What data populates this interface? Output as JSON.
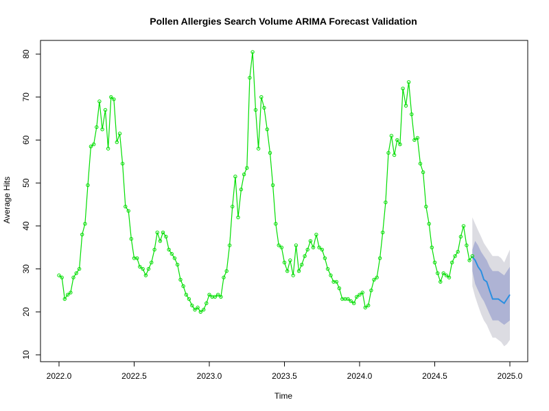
{
  "chart_data": {
    "type": "line",
    "title": "Pollen Allergies Search Volume ARIMA Forecast Validation",
    "xlabel": "Time",
    "ylabel": "Average Hits",
    "xlim": [
      2022.0,
      2025.0
    ],
    "ylim": [
      10,
      82
    ],
    "xticks": [
      2022.0,
      2022.5,
      2023.0,
      2023.5,
      2024.0,
      2024.5,
      2025.0
    ],
    "xtick_labels": [
      "2022.0",
      "2022.5",
      "2023.0",
      "2023.5",
      "2024.0",
      "2024.5",
      "2025.0"
    ],
    "yticks": [
      10,
      20,
      30,
      40,
      50,
      60,
      70,
      80
    ],
    "ytick_labels": [
      "10",
      "20",
      "30",
      "40",
      "50",
      "60",
      "70",
      "80"
    ],
    "grid": false,
    "colors": {
      "observed": "#00dd00",
      "forecast": "#2a8fe0",
      "band80": "#aeb3d4",
      "band95": "#dcdce2"
    },
    "series": [
      {
        "role": "observed",
        "x": [
          2022.0,
          2022.019,
          2022.038,
          2022.058,
          2022.077,
          2022.096,
          2022.115,
          2022.135,
          2022.154,
          2022.173,
          2022.192,
          2022.212,
          2022.231,
          2022.25,
          2022.269,
          2022.288,
          2022.308,
          2022.327,
          2022.346,
          2022.365,
          2022.385,
          2022.404,
          2022.423,
          2022.442,
          2022.462,
          2022.481,
          2022.5,
          2022.519,
          2022.538,
          2022.558,
          2022.577,
          2022.596,
          2022.615,
          2022.635,
          2022.654,
          2022.673,
          2022.692,
          2022.712,
          2022.731,
          2022.75,
          2022.769,
          2022.788,
          2022.808,
          2022.827,
          2022.846,
          2022.865,
          2022.885,
          2022.904,
          2022.923,
          2022.942,
          2022.962,
          2022.981,
          2023.0,
          2023.019,
          2023.038,
          2023.058,
          2023.077,
          2023.096,
          2023.115,
          2023.135,
          2023.154,
          2023.173,
          2023.192,
          2023.212,
          2023.231,
          2023.25,
          2023.269,
          2023.288,
          2023.308,
          2023.327,
          2023.346,
          2023.365,
          2023.385,
          2023.404,
          2023.423,
          2023.442,
          2023.462,
          2023.481,
          2023.5,
          2023.519,
          2023.538,
          2023.558,
          2023.577,
          2023.596,
          2023.615,
          2023.635,
          2023.654,
          2023.673,
          2023.692,
          2023.712,
          2023.731,
          2023.75,
          2023.769,
          2023.788,
          2023.808,
          2023.827,
          2023.846,
          2023.865,
          2023.885,
          2023.904,
          2023.923,
          2023.942,
          2023.962,
          2023.981,
          2024.0,
          2024.019,
          2024.038,
          2024.058,
          2024.077,
          2024.096,
          2024.115,
          2024.135,
          2024.154,
          2024.173,
          2024.192,
          2024.212,
          2024.231,
          2024.25,
          2024.269,
          2024.288,
          2024.308,
          2024.327,
          2024.346,
          2024.365,
          2024.385,
          2024.404,
          2024.423,
          2024.442,
          2024.462,
          2024.481,
          2024.5,
          2024.519,
          2024.538,
          2024.558,
          2024.577,
          2024.596,
          2024.615,
          2024.635,
          2024.654,
          2024.673,
          2024.692,
          2024.712,
          2024.731,
          2024.75
        ],
        "values": [
          28.5,
          28,
          23,
          24,
          24.5,
          28,
          29,
          30,
          38,
          40.5,
          49.5,
          58.5,
          59,
          63,
          69,
          62.5,
          67,
          58,
          70,
          69.5,
          59.5,
          61.5,
          54.5,
          44.5,
          43.5,
          37,
          32.5,
          32.5,
          30.5,
          30,
          28.5,
          30,
          31.5,
          34.5,
          38.5,
          36.5,
          38.5,
          37.5,
          34.5,
          33.5,
          32.5,
          31,
          27.5,
          26,
          24,
          23,
          21.5,
          20.5,
          21,
          20,
          20.5,
          22,
          24,
          23.5,
          23.5,
          24,
          23.5,
          28,
          29.5,
          35.5,
          44.5,
          51.5,
          42,
          48.5,
          52,
          53.5,
          74.5,
          80.5,
          67,
          58,
          70,
          67.5,
          62.5,
          57,
          49.5,
          40.5,
          35.5,
          35,
          31.5,
          29.5,
          32,
          28.5,
          35.5,
          29.5,
          31,
          33,
          34.5,
          36.5,
          35,
          38,
          35,
          34.5,
          32.5,
          30,
          28.5,
          27,
          27,
          25.5,
          23,
          23,
          23,
          22.5,
          22,
          23.5,
          24,
          24.5,
          21,
          21.5,
          25,
          27.5,
          28,
          32.5,
          38.5,
          45.5,
          57,
          61,
          56.5,
          60,
          59,
          72,
          68,
          73.5,
          66,
          60,
          60.5,
          54.5,
          52.5,
          44.5,
          40.5,
          35,
          31.5,
          29,
          27,
          29,
          28.5,
          28,
          31.5,
          33,
          34,
          37.5,
          40,
          35.5,
          32,
          33
        ]
      },
      {
        "role": "forecast",
        "x": [
          2024.75,
          2024.769,
          2024.788,
          2024.808,
          2024.827,
          2024.846,
          2024.865,
          2024.885,
          2024.904,
          2024.923,
          2024.942,
          2024.962,
          2024.981,
          2025.0
        ],
        "values": [
          32.8,
          32,
          30.5,
          29.5,
          27.5,
          27,
          25,
          23,
          23,
          23,
          22.5,
          22,
          23,
          24
        ],
        "lo80": [
          29.5,
          26.5,
          25,
          23.5,
          22.5,
          21,
          19.5,
          18,
          18,
          18,
          17.5,
          17,
          17.5,
          18
        ],
        "hi80": [
          34.5,
          36.5,
          35.5,
          34,
          33,
          32,
          30.5,
          29.5,
          29.5,
          29.5,
          29,
          28.5,
          29.5,
          30.5
        ],
        "lo95": [
          26,
          23.5,
          21.5,
          19.5,
          18,
          17,
          15.5,
          14,
          14,
          13.5,
          13,
          12,
          12.5,
          13.5
        ],
        "hi95": [
          42,
          40.5,
          39,
          37.5,
          36,
          35,
          34,
          33,
          33,
          33,
          32.5,
          31.5,
          33,
          34.5
        ]
      }
    ]
  }
}
